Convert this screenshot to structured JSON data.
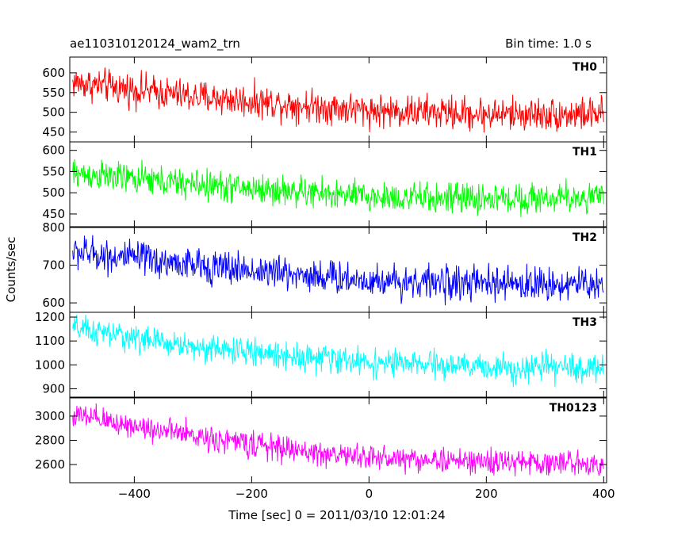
{
  "header": {
    "left": "ae110310120124_wam2_trn",
    "right": "Bin time: 1.0 s"
  },
  "chart_data": {
    "type": "line",
    "title": "ae110310120124_wam2_trn",
    "subtitle": "Bin time: 1.0 s",
    "xlabel": "Time [sec] 0 = 2011/03/10 12:01:24",
    "ylabel": "Counts/sec",
    "xlim": [
      -510,
      405
    ],
    "xticks": [
      -400,
      -200,
      0,
      200,
      400
    ],
    "grid": false,
    "panels": [
      {
        "name": "TH0",
        "color": "#ff0000",
        "ylim": [
          425,
          640
        ],
        "yticks": [
          450,
          500,
          550,
          600
        ],
        "x_start": -505,
        "x_end": 400,
        "x_step": 1,
        "trend": {
          "x": [
            -500,
            -300,
            0,
            200,
            400
          ],
          "y": [
            575,
            540,
            505,
            495,
            495
          ]
        },
        "noise_amplitude": 28
      },
      {
        "name": "TH1",
        "color": "#00ff00",
        "ylim": [
          420,
          620
        ],
        "yticks": [
          450,
          500,
          550,
          600
        ],
        "x_start": -505,
        "x_end": 400,
        "x_step": 1,
        "trend": {
          "x": [
            -500,
            -300,
            0,
            200,
            400
          ],
          "y": [
            545,
            520,
            490,
            485,
            490
          ]
        },
        "noise_amplitude": 24
      },
      {
        "name": "TH2",
        "color": "#0000ff",
        "ylim": [
          575,
          800
        ],
        "yticks": [
          600,
          700,
          800
        ],
        "x_start": -505,
        "x_end": 400,
        "x_step": 1,
        "trend": {
          "x": [
            -500,
            -300,
            0,
            200,
            400
          ],
          "y": [
            735,
            700,
            660,
            650,
            650
          ]
        },
        "noise_amplitude": 30
      },
      {
        "name": "TH3",
        "color": "#00ffff",
        "ylim": [
          865,
          1220
        ],
        "yticks": [
          900,
          1000,
          1100,
          1200
        ],
        "x_start": -505,
        "x_end": 400,
        "x_step": 1,
        "trend": {
          "x": [
            -500,
            -300,
            0,
            200,
            400
          ],
          "y": [
            1150,
            1075,
            1010,
            990,
            985
          ]
        },
        "noise_amplitude": 38
      },
      {
        "name": "TH0123",
        "color": "#ff00ff",
        "ylim": [
          2450,
          3150
        ],
        "yticks": [
          2600,
          2800,
          3000
        ],
        "x_start": -505,
        "x_end": 400,
        "x_step": 1,
        "trend": {
          "x": [
            -500,
            -300,
            -100,
            0,
            200,
            400
          ],
          "y": [
            3000,
            2840,
            2700,
            2660,
            2620,
            2610
          ]
        },
        "noise_amplitude": 70
      }
    ]
  }
}
